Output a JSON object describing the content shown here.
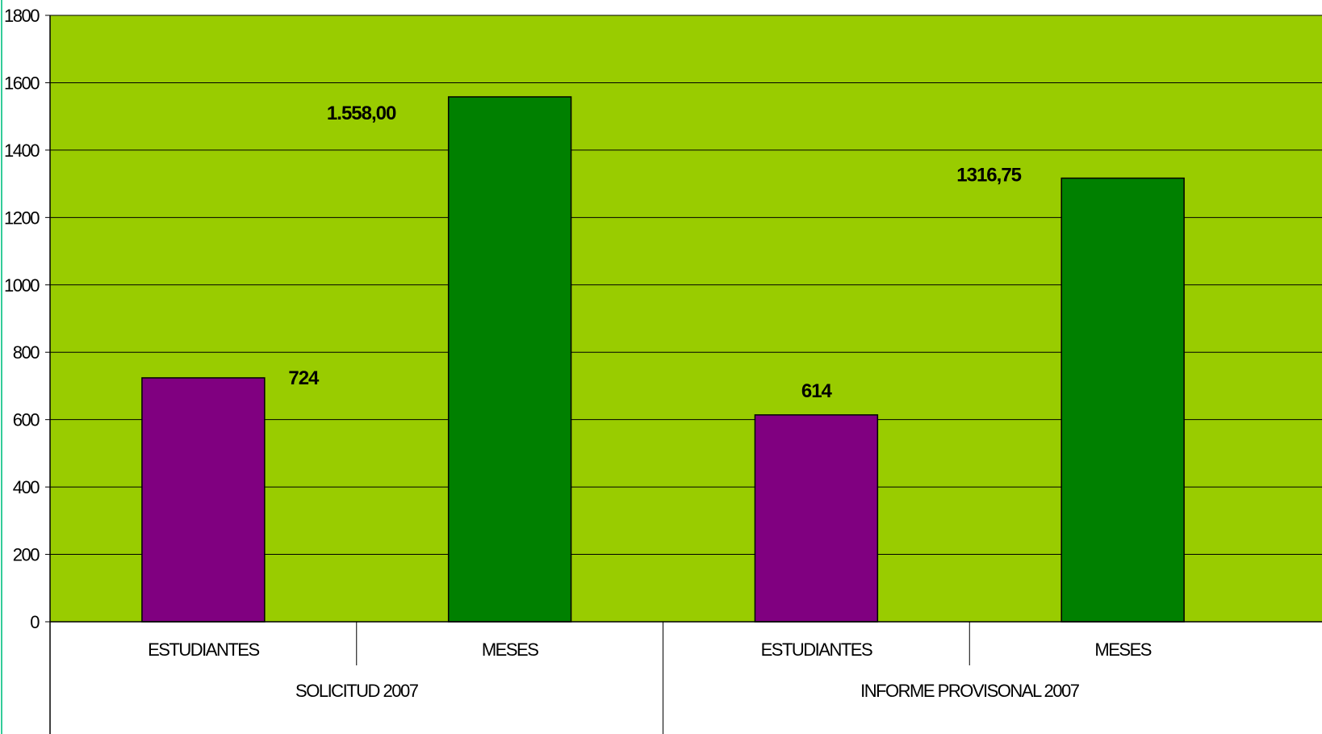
{
  "chart_data": {
    "type": "bar",
    "title": "",
    "xlabel": "",
    "ylabel": "",
    "ylim": [
      0,
      1800
    ],
    "yticks": [
      "0",
      "200",
      "400",
      "600",
      "800",
      "1000",
      "1200",
      "1400",
      "1600",
      "1800"
    ],
    "grid": true,
    "legend": "none",
    "groups": [
      {
        "label": "SOLICITUD 2007",
        "bars": [
          {
            "category": "ESTUDIANTES",
            "value": 724,
            "label": "724",
            "color": "#800080"
          },
          {
            "category": "MESES",
            "value": 1558,
            "label": "1.558,00",
            "color": "#008000"
          }
        ]
      },
      {
        "label": "INFORME PROVISONAL 2007",
        "bars": [
          {
            "category": "ESTUDIANTES",
            "value": 614,
            "label": "614",
            "color": "#800080"
          },
          {
            "category": "MESES",
            "value": 1316.75,
            "label": "1316,75",
            "color": "#008000"
          }
        ]
      }
    ],
    "colors": {
      "plot_background": "#99CC00",
      "estudiantes": "#800080",
      "meses": "#008000",
      "gridline": "#000000"
    }
  }
}
